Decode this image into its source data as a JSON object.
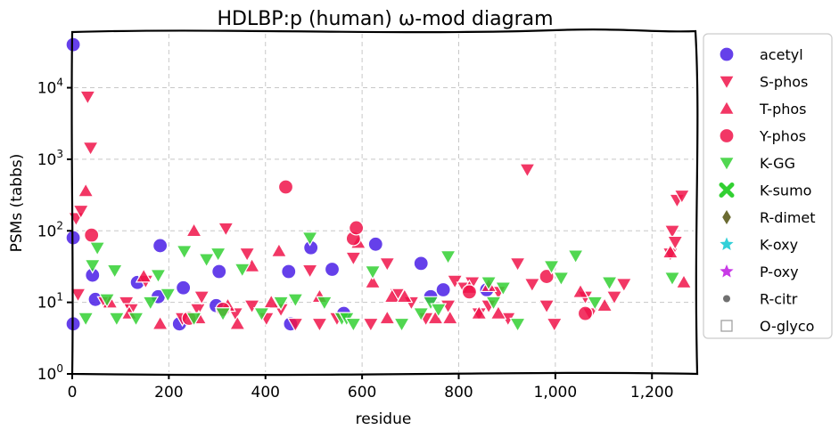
{
  "chart_data": {
    "type": "scatter",
    "title": "HDLBP:p (human) ω-mod diagram",
    "xlabel": "residue",
    "ylabel": "PSMs (tabbs)",
    "xlim": [
      0,
      1290
    ],
    "ylim": [
      1,
      60000
    ],
    "yscale": "log",
    "grid": true,
    "legend_position": "right-outside",
    "x_ticks": [
      {
        "value": 0,
        "label": "0"
      },
      {
        "value": 200,
        "label": "200"
      },
      {
        "value": 400,
        "label": "400"
      },
      {
        "value": 600,
        "label": "600"
      },
      {
        "value": 800,
        "label": "800"
      },
      {
        "value": 1000,
        "label": "1,000"
      },
      {
        "value": 1200,
        "label": "1,200"
      }
    ],
    "y_ticks": [
      {
        "value": 1,
        "base": "10",
        "exp": "0"
      },
      {
        "value": 10,
        "base": "10",
        "exp": "1"
      },
      {
        "value": 100,
        "base": "10",
        "exp": "2"
      },
      {
        "value": 1000,
        "base": "10",
        "exp": "3"
      },
      {
        "value": 10000,
        "base": "10",
        "exp": "4"
      }
    ],
    "series": [
      {
        "name": "acetyl",
        "marker": "circle",
        "color": "#4a1fe6",
        "points": [
          [
            2,
            40000
          ],
          [
            2,
            80
          ],
          [
            2,
            5
          ],
          [
            42,
            24
          ],
          [
            48,
            11
          ],
          [
            135,
            19
          ],
          [
            178,
            12
          ],
          [
            182,
            62
          ],
          [
            222,
            5
          ],
          [
            230,
            16
          ],
          [
            298,
            9
          ],
          [
            304,
            27
          ],
          [
            448,
            27
          ],
          [
            452,
            5
          ],
          [
            494,
            58
          ],
          [
            538,
            29
          ],
          [
            562,
            7
          ],
          [
            628,
            65
          ],
          [
            722,
            35
          ],
          [
            742,
            12
          ],
          [
            768,
            15
          ],
          [
            858,
            15
          ]
        ]
      },
      {
        "name": "S-phos",
        "marker": "triangle-down",
        "color": "#f0144a",
        "points": [
          [
            8,
            150
          ],
          [
            12,
            13
          ],
          [
            18,
            190
          ],
          [
            32,
            7500
          ],
          [
            38,
            1450
          ],
          [
            68,
            10
          ],
          [
            112,
            10
          ],
          [
            122,
            8
          ],
          [
            152,
            20
          ],
          [
            228,
            6
          ],
          [
            260,
            8
          ],
          [
            268,
            12
          ],
          [
            318,
            108
          ],
          [
            338,
            7
          ],
          [
            362,
            48
          ],
          [
            372,
            9
          ],
          [
            402,
            6
          ],
          [
            432,
            8
          ],
          [
            462,
            5
          ],
          [
            492,
            28
          ],
          [
            512,
            5
          ],
          [
            548,
            6
          ],
          [
            582,
            42
          ],
          [
            618,
            5
          ],
          [
            652,
            35
          ],
          [
            672,
            13
          ],
          [
            702,
            10
          ],
          [
            732,
            6
          ],
          [
            778,
            9
          ],
          [
            792,
            20
          ],
          [
            812,
            16
          ],
          [
            828,
            19
          ],
          [
            842,
            7
          ],
          [
            862,
            9
          ],
          [
            882,
            14
          ],
          [
            902,
            6
          ],
          [
            922,
            35
          ],
          [
            942,
            720
          ],
          [
            952,
            18
          ],
          [
            982,
            9
          ],
          [
            998,
            5
          ],
          [
            1062,
            12
          ],
          [
            1072,
            7
          ],
          [
            1122,
            12
          ],
          [
            1142,
            18
          ],
          [
            1238,
            48
          ],
          [
            1242,
            100
          ],
          [
            1248,
            70
          ],
          [
            1252,
            270
          ],
          [
            1262,
            310
          ]
        ]
      },
      {
        "name": "T-phos",
        "marker": "triangle-up",
        "color": "#f0144a",
        "points": [
          [
            28,
            360
          ],
          [
            78,
            10
          ],
          [
            118,
            7
          ],
          [
            148,
            23
          ],
          [
            182,
            5
          ],
          [
            252,
            100
          ],
          [
            262,
            6
          ],
          [
            322,
            9
          ],
          [
            342,
            5
          ],
          [
            372,
            32
          ],
          [
            412,
            10
          ],
          [
            428,
            52
          ],
          [
            512,
            12
          ],
          [
            592,
            68
          ],
          [
            622,
            19
          ],
          [
            652,
            6
          ],
          [
            662,
            12
          ],
          [
            688,
            12
          ],
          [
            752,
            6
          ],
          [
            782,
            6
          ],
          [
            822,
            16
          ],
          [
            842,
            7
          ],
          [
            862,
            17
          ],
          [
            882,
            7
          ],
          [
            1052,
            14
          ],
          [
            1102,
            9
          ],
          [
            1238,
            50
          ],
          [
            1266,
            19
          ]
        ]
      },
      {
        "name": "Y-phos",
        "marker": "circle",
        "color": "#f0144a",
        "points": [
          [
            40,
            87
          ],
          [
            242,
            6
          ],
          [
            312,
            8
          ],
          [
            442,
            410
          ],
          [
            582,
            78
          ],
          [
            588,
            110
          ],
          [
            822,
            14
          ],
          [
            982,
            23
          ],
          [
            1062,
            7
          ]
        ]
      },
      {
        "name": "K-GG",
        "marker": "triangle-down",
        "color": "#32d032",
        "points": [
          [
            28,
            6
          ],
          [
            42,
            33
          ],
          [
            52,
            58
          ],
          [
            72,
            11
          ],
          [
            88,
            28
          ],
          [
            92,
            6
          ],
          [
            132,
            6
          ],
          [
            162,
            10
          ],
          [
            178,
            24
          ],
          [
            198,
            13
          ],
          [
            232,
            52
          ],
          [
            252,
            6
          ],
          [
            278,
            40
          ],
          [
            302,
            48
          ],
          [
            312,
            7
          ],
          [
            352,
            29
          ],
          [
            392,
            7
          ],
          [
            432,
            10
          ],
          [
            462,
            11
          ],
          [
            492,
            80
          ],
          [
            522,
            10
          ],
          [
            558,
            6
          ],
          [
            568,
            6
          ],
          [
            582,
            5
          ],
          [
            622,
            27
          ],
          [
            682,
            5
          ],
          [
            722,
            7
          ],
          [
            742,
            10
          ],
          [
            758,
            8
          ],
          [
            778,
            44
          ],
          [
            862,
            19
          ],
          [
            872,
            10
          ],
          [
            892,
            16
          ],
          [
            922,
            5
          ],
          [
            992,
            32
          ],
          [
            1012,
            22
          ],
          [
            1042,
            45
          ],
          [
            1082,
            10
          ],
          [
            1112,
            19
          ],
          [
            1242,
            22
          ]
        ]
      }
    ]
  },
  "legend": [
    {
      "label": "acetyl",
      "marker": "circle",
      "color": "#4a1fe6"
    },
    {
      "label": "S-phos",
      "marker": "triangle-down",
      "color": "#f0144a"
    },
    {
      "label": "T-phos",
      "marker": "triangle-up",
      "color": "#f0144a"
    },
    {
      "label": "Y-phos",
      "marker": "circle",
      "color": "#f0144a"
    },
    {
      "label": "K-GG",
      "marker": "triangle-down",
      "color": "#32d032"
    },
    {
      "label": "K-sumo",
      "marker": "x-cross",
      "color": "#32d032"
    },
    {
      "label": "R-dimet",
      "marker": "diamond",
      "color": "#6b6b32"
    },
    {
      "label": "K-oxy",
      "marker": "star",
      "color": "#32d0d8"
    },
    {
      "label": "P-oxy",
      "marker": "star",
      "color": "#c83ae6"
    },
    {
      "label": "R-citr",
      "marker": "small-circle",
      "color": "#707070"
    },
    {
      "label": "O-glyco",
      "marker": "open-square",
      "color": "#a0a0a0"
    }
  ]
}
